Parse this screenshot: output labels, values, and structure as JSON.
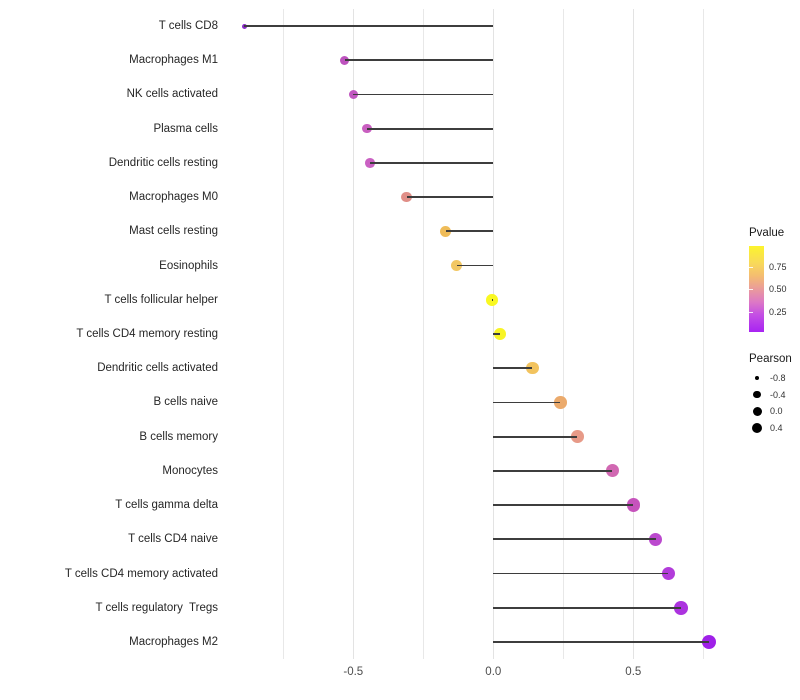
{
  "chart_data": {
    "type": "lollipop",
    "title": "",
    "xlabel": "",
    "ylabel": "",
    "x_ticks": [
      "-0.5",
      "0.0",
      "0.5"
    ],
    "x_tick_values": [
      -0.5,
      0.0,
      0.5
    ],
    "x_minor_tick_values": [
      -0.75,
      -0.25,
      0.25,
      0.75
    ],
    "xlim": [
      -0.97,
      0.85
    ],
    "grid": "vertical-only",
    "legend_position": "right",
    "points": [
      {
        "label": "T cells CD8",
        "pearson": -0.89,
        "pvalue": 0.02,
        "color": "#8a2cc8"
      },
      {
        "label": "Macrophages M1",
        "pearson": -0.53,
        "pvalue": 0.25,
        "color": "#bd53be"
      },
      {
        "label": "NK cells activated",
        "pearson": -0.5,
        "pvalue": 0.28,
        "color": "#c157c0"
      },
      {
        "label": "Plasma cells",
        "pearson": -0.45,
        "pvalue": 0.33,
        "color": "#c95fc0"
      },
      {
        "label": "Dendritic cells resting",
        "pearson": -0.44,
        "pvalue": 0.34,
        "color": "#ca61c3"
      },
      {
        "label": "Macrophages M0",
        "pearson": -0.31,
        "pvalue": 0.53,
        "color": "#e08e87"
      },
      {
        "label": "Mast cells resting",
        "pearson": -0.17,
        "pvalue": 0.7,
        "color": "#efbc59"
      },
      {
        "label": "Eosinophils",
        "pearson": -0.13,
        "pvalue": 0.74,
        "color": "#f2c763"
      },
      {
        "label": "T cells follicular helper",
        "pearson": -0.005,
        "pvalue": 0.97,
        "color": "#f9f822"
      },
      {
        "label": "T cells CD4 memory resting",
        "pearson": 0.025,
        "pvalue": 0.93,
        "color": "#f8f426"
      },
      {
        "label": "Dendritic cells activated",
        "pearson": 0.14,
        "pvalue": 0.74,
        "color": "#f2c35e"
      },
      {
        "label": "B cells naive",
        "pearson": 0.24,
        "pvalue": 0.64,
        "color": "#ebaa6c"
      },
      {
        "label": "B cells memory",
        "pearson": 0.3,
        "pvalue": 0.56,
        "color": "#e79a88"
      },
      {
        "label": "Monocytes",
        "pearson": 0.425,
        "pvalue": 0.38,
        "color": "#d168b2"
      },
      {
        "label": "T cells gamma delta",
        "pearson": 0.5,
        "pvalue": 0.28,
        "color": "#c653bc"
      },
      {
        "label": "T cells CD4 naive",
        "pearson": 0.58,
        "pvalue": 0.2,
        "color": "#bb49ce"
      },
      {
        "label": "T cells CD4 memory activated",
        "pearson": 0.625,
        "pvalue": 0.15,
        "color": "#b23cda"
      },
      {
        "label": "T cells regulatory  Tregs",
        "pearson": 0.67,
        "pvalue": 0.1,
        "color": "#ac33df"
      },
      {
        "label": "Macrophages M2",
        "pearson": 0.77,
        "pvalue": 0.05,
        "color": "#9f20e8"
      }
    ]
  },
  "legend": {
    "pvalue": {
      "title": "Pvalue",
      "ticks": [
        "0.75",
        "0.50",
        "0.25"
      ],
      "gradient_top_color": "#fcf42d",
      "gradient_mid_color": "#ea9b9b",
      "gradient_bottom_color": "#a823f2"
    },
    "pearson": {
      "title": "Pearson",
      "sizes": [
        {
          "label": "-0.8",
          "diameter": 4.3
        },
        {
          "label": "-0.4",
          "diameter": 7.3
        },
        {
          "label": "0.0",
          "diameter": 9.0
        },
        {
          "label": "0.4",
          "diameter": 10.7
        }
      ],
      "dot_color": "#000000"
    }
  },
  "style": {
    "stem_color": "#3d3d3d",
    "background": "#ffffff",
    "gridline_color": "#e8e8e8"
  }
}
